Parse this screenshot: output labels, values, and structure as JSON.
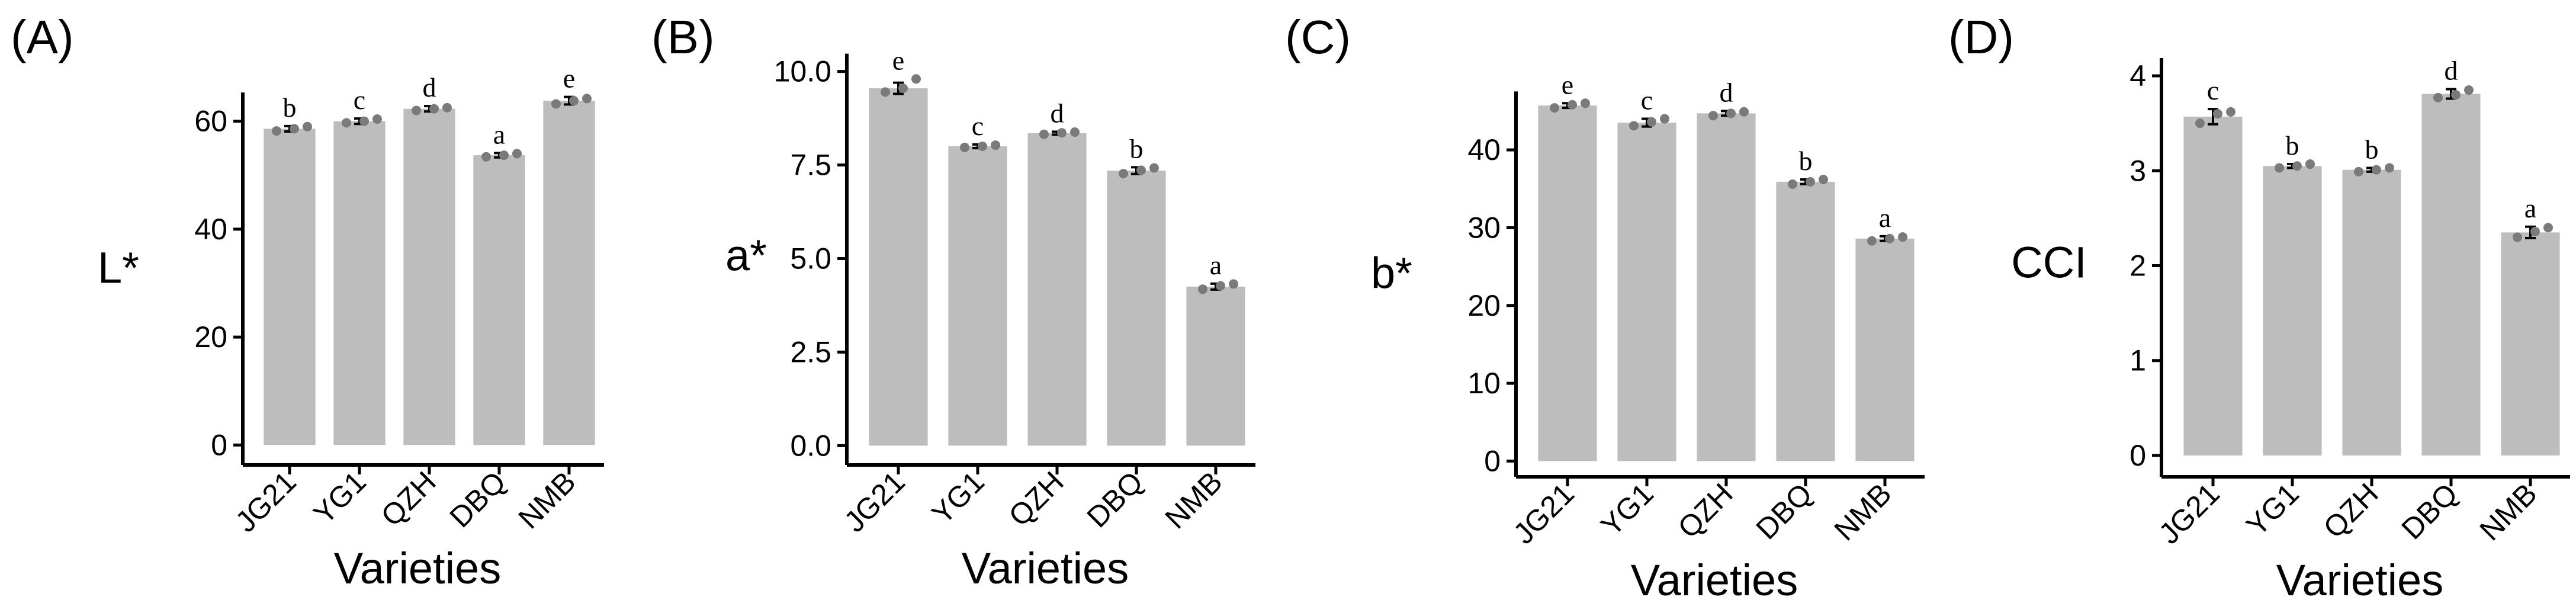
{
  "colors": {
    "bar": "#bdbdbd",
    "point": "#7a7a7a",
    "axis": "#000000",
    "errorbar": "#000000"
  },
  "chart_data": [
    {
      "type": "bar",
      "panel_label": "(A)",
      "ylabel": "L*",
      "xlabel": "Varieties",
      "categories": [
        "JG21",
        "YG1",
        "QZH",
        "DBQ",
        "NMB"
      ],
      "values": [
        58.6,
        60.0,
        62.3,
        53.7,
        63.8
      ],
      "errors": [
        0.5,
        0.5,
        0.5,
        0.4,
        0.7
      ],
      "points": [
        [
          58.2,
          58.6,
          59.0
        ],
        [
          59.7,
          60.0,
          60.4
        ],
        [
          62.0,
          62.3,
          62.5
        ],
        [
          53.4,
          53.7,
          54.0
        ],
        [
          63.2,
          63.8,
          64.2
        ]
      ],
      "letters": [
        "b",
        "c",
        "d",
        "a",
        "e"
      ],
      "yticks": [
        0,
        20,
        40,
        60
      ],
      "ytick_labels": [
        "0",
        "20",
        "40",
        "60"
      ],
      "ylim": [
        -1.5,
        66
      ]
    },
    {
      "type": "bar",
      "panel_label": "(B)",
      "ylabel": "a*",
      "xlabel": "Varieties",
      "categories": [
        "JG21",
        "YG1",
        "QZH",
        "DBQ",
        "NMB"
      ],
      "values": [
        9.55,
        8.0,
        8.35,
        7.35,
        4.25
      ],
      "errors": [
        0.15,
        0.05,
        0.04,
        0.09,
        0.08
      ],
      "points": [
        [
          9.45,
          9.55,
          9.8
        ],
        [
          7.97,
          8.0,
          8.03
        ],
        [
          8.32,
          8.36,
          8.38
        ],
        [
          7.27,
          7.36,
          7.42
        ],
        [
          4.18,
          4.27,
          4.32
        ]
      ],
      "letters": [
        "e",
        "c",
        "d",
        "b",
        "a"
      ],
      "yticks": [
        0,
        2.5,
        5.0,
        7.5,
        10.0
      ],
      "ytick_labels": [
        "0.0",
        "2.5",
        "5.0",
        "7.5",
        "10.0"
      ],
      "ylim": [
        -0.2,
        10.2
      ]
    },
    {
      "type": "bar",
      "panel_label": "(C)",
      "ylabel": "b*",
      "xlabel": "Varieties",
      "categories": [
        "JG21",
        "YG1",
        "QZH",
        "DBQ",
        "NMB"
      ],
      "values": [
        45.7,
        43.5,
        44.7,
        35.9,
        28.6
      ],
      "errors": [
        0.3,
        0.5,
        0.3,
        0.3,
        0.3
      ],
      "points": [
        [
          45.4,
          45.8,
          46.0
        ],
        [
          43.1,
          43.6,
          44.0
        ],
        [
          44.4,
          44.7,
          44.9
        ],
        [
          35.6,
          35.9,
          36.2
        ],
        [
          28.3,
          28.6,
          28.8
        ]
      ],
      "letters": [
        "e",
        "c",
        "d",
        "b",
        "a"
      ],
      "yticks": [
        0,
        10,
        20,
        30,
        40
      ],
      "ytick_labels": [
        "0",
        "10",
        "20",
        "30",
        "40"
      ],
      "ylim": [
        -0.5,
        48
      ]
    },
    {
      "type": "bar",
      "panel_label": "(D)",
      "ylabel": "CCI",
      "xlabel": "Varieties",
      "categories": [
        "JG21",
        "YG1",
        "QZH",
        "DBQ",
        "NMB"
      ],
      "values": [
        3.57,
        3.05,
        3.01,
        3.81,
        2.35
      ],
      "errors": [
        0.08,
        0.02,
        0.02,
        0.05,
        0.06
      ],
      "points": [
        [
          3.5,
          3.6,
          3.62
        ],
        [
          3.03,
          3.05,
          3.07
        ],
        [
          2.99,
          3.01,
          3.03
        ],
        [
          3.77,
          3.8,
          3.85
        ],
        [
          2.3,
          2.36,
          2.4
        ]
      ],
      "letters": [
        "c",
        "b",
        "b",
        "d",
        "a"
      ],
      "yticks": [
        0,
        1,
        2,
        3,
        4
      ],
      "ytick_labels": [
        "0",
        "1",
        "2",
        "3",
        "4"
      ],
      "ylim": [
        -0.1,
        4.1
      ]
    }
  ]
}
